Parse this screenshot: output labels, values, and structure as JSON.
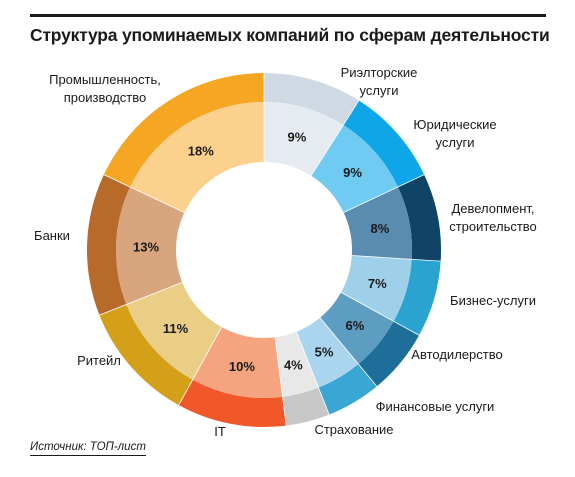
{
  "title": "Структура упоминаемых компаний по сферам деятельности",
  "source": "Источник: ТОП-лист",
  "chart_data": {
    "type": "pie",
    "variant": "donut",
    "title": "Структура упоминаемых компаний по сферам деятельности",
    "slices": [
      {
        "label": "Риэлторские услуги",
        "lines": [
          "Риэлторские",
          "услуги"
        ],
        "value": 9,
        "value_label": "9%",
        "outer": "#cfd9e3",
        "inner": "#e6ebf1"
      },
      {
        "label": "Юридические услуги",
        "lines": [
          "Юридические",
          "услуги"
        ],
        "value": 9,
        "value_label": "9%",
        "outer": "#0ea5e9",
        "inner": "#6fcbf2"
      },
      {
        "label": "Девелопмент, строительство",
        "lines": [
          "Девелопмент,",
          "строительство"
        ],
        "value": 8,
        "value_label": "8%",
        "outer": "#0f4466",
        "inner": "#5a8bb0"
      },
      {
        "label": "Бизнес-услуги",
        "lines": [
          "Бизнес-услуги"
        ],
        "value": 7,
        "value_label": "7%",
        "outer": "#2aa3d1",
        "inner": "#9ed0ea"
      },
      {
        "label": "Автодилерство",
        "lines": [
          "Автодилерство"
        ],
        "value": 6,
        "value_label": "6%",
        "outer": "#1e6e9a",
        "inner": "#5e9dc2"
      },
      {
        "label": "Финансовые услуги",
        "lines": [
          "Финансовые услуги"
        ],
        "value": 5,
        "value_label": "5%",
        "outer": "#3aa6d3",
        "inner": "#a9d6ee"
      },
      {
        "label": "Страхование",
        "lines": [
          "Страхование"
        ],
        "value": 4,
        "value_label": "4%",
        "outer": "#c7c7c7",
        "inner": "#e8e8e8"
      },
      {
        "label": "IT",
        "lines": [
          "IT"
        ],
        "value": 10,
        "value_label": "10%",
        "outer": "#f0582a",
        "inner": "#f5a47f"
      },
      {
        "label": "Ритейл",
        "lines": [
          "Ритейл"
        ],
        "value": 11,
        "value_label": "11%",
        "outer": "#d4a01a",
        "inner": "#ebce86"
      },
      {
        "label": "Банки",
        "lines": [
          "Банки"
        ],
        "value": 13,
        "value_label": "13%",
        "outer": "#b86a2a",
        "inner": "#d8a57e"
      },
      {
        "label": "Промышленность, производство",
        "lines": [
          "Промышленность,",
          "производство"
        ],
        "value": 18,
        "value_label": "18%",
        "outer": "#f5a623",
        "inner": "#fcd08d"
      }
    ]
  }
}
